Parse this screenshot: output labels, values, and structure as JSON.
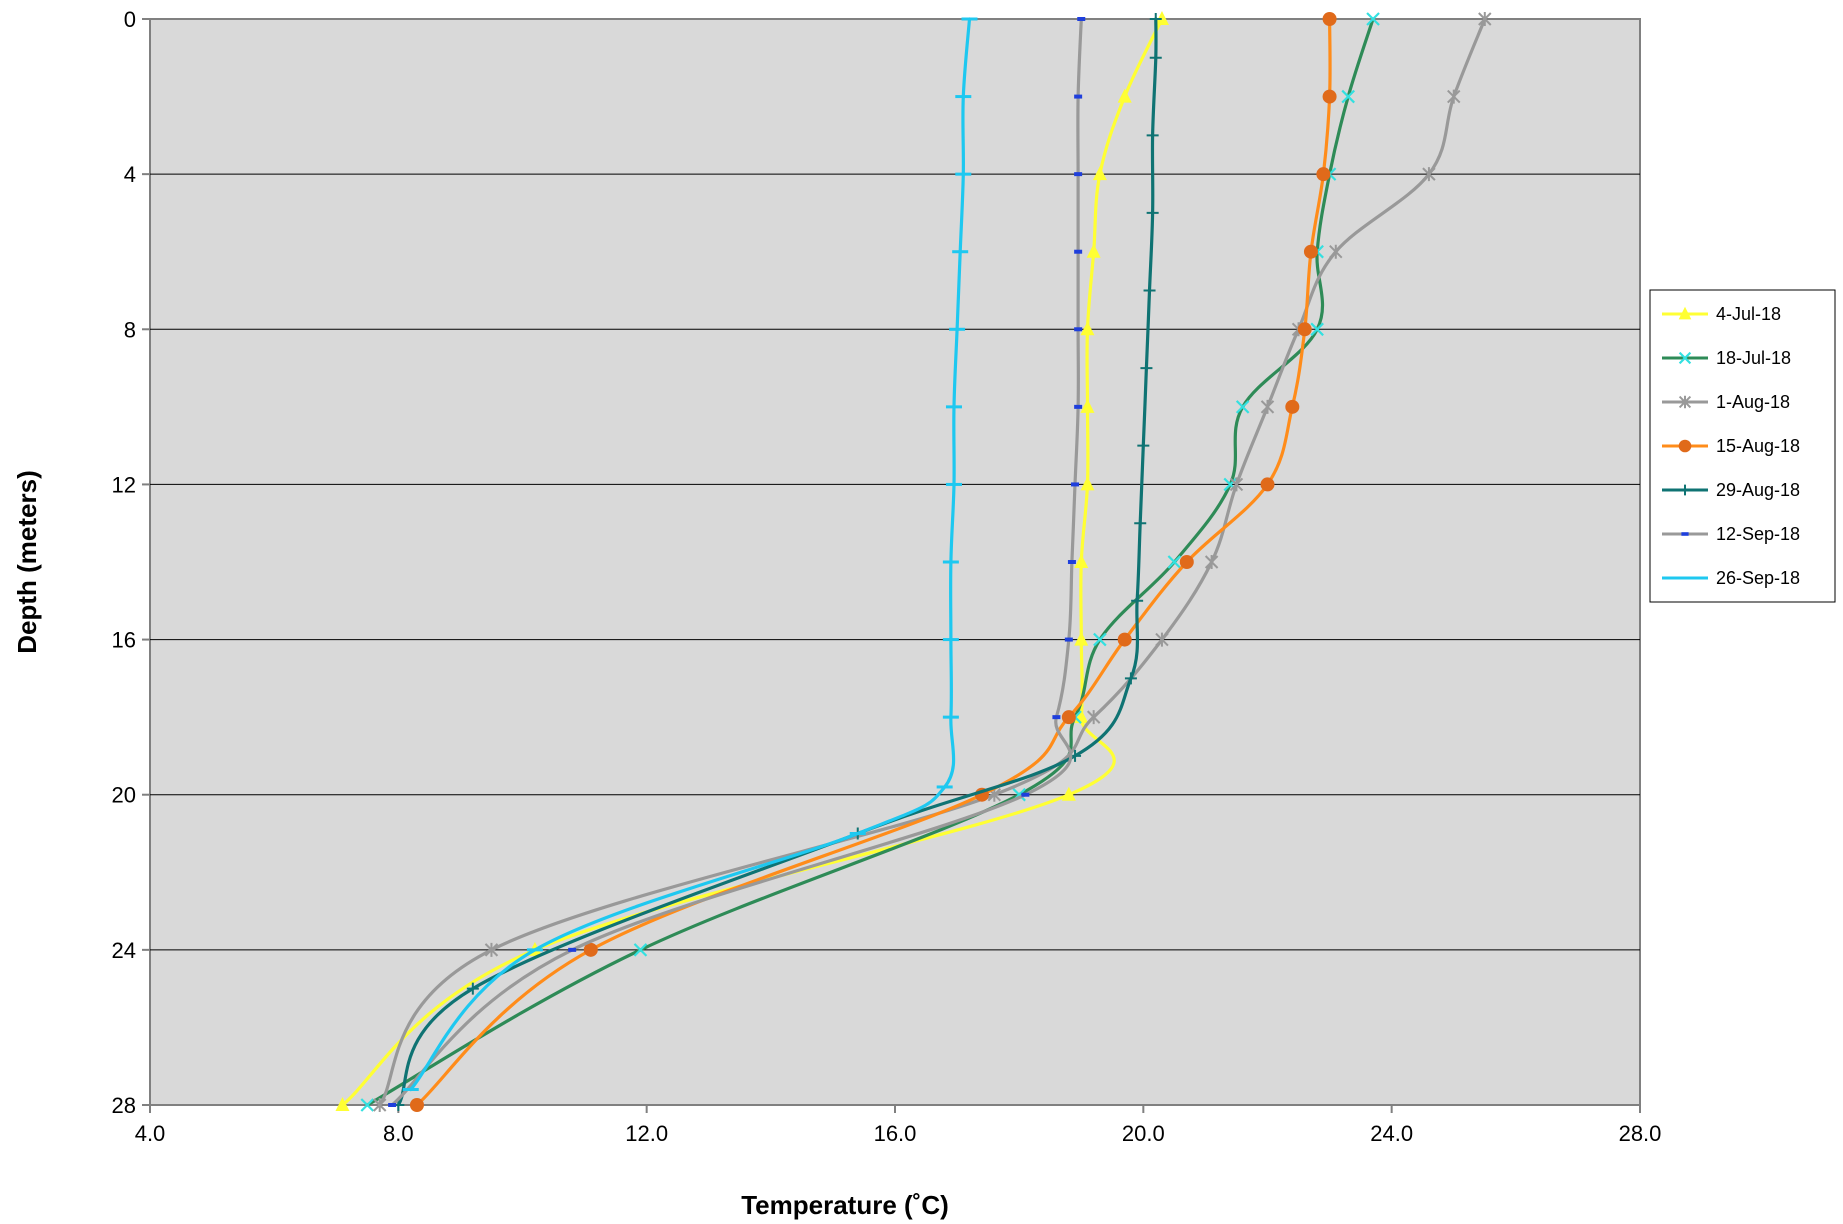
{
  "chart_data": {
    "type": "line",
    "title": "",
    "xlabel": "Temperature (˚C)",
    "ylabel": "Depth (meters)",
    "xlim": [
      4,
      28
    ],
    "ylim": [
      0,
      28
    ],
    "y_inverted": true,
    "x_ticks": [
      "4.0",
      "8.0",
      "12.0",
      "16.0",
      "20.0",
      "24.0",
      "28.0"
    ],
    "y_ticks": [
      "0",
      "4",
      "8",
      "12",
      "16",
      "20",
      "24",
      "28"
    ],
    "grid": "horizontal",
    "plot_background": "#d9d9d9",
    "legend_position": "right",
    "series": [
      {
        "name": "4-Jul-18",
        "color": "#ffff33",
        "marker": "triangle",
        "points": [
          [
            20.3,
            0
          ],
          [
            19.7,
            2
          ],
          [
            19.3,
            4
          ],
          [
            19.2,
            6
          ],
          [
            19.1,
            8
          ],
          [
            19.1,
            10
          ],
          [
            19.1,
            12
          ],
          [
            19.0,
            14
          ],
          [
            19.0,
            16
          ],
          [
            19.0,
            18
          ],
          [
            18.8,
            20
          ],
          [
            10.2,
            24
          ],
          [
            7.1,
            28
          ]
        ]
      },
      {
        "name": "18-Jul-18",
        "color": "#2e8b57",
        "marker_color": "#33e0e0",
        "marker": "x",
        "points": [
          [
            23.7,
            0
          ],
          [
            23.3,
            2
          ],
          [
            23.0,
            4
          ],
          [
            22.8,
            6
          ],
          [
            22.8,
            8
          ],
          [
            21.6,
            10
          ],
          [
            21.4,
            12
          ],
          [
            20.5,
            14
          ],
          [
            19.3,
            16
          ],
          [
            18.9,
            18
          ],
          [
            18.0,
            20
          ],
          [
            11.9,
            24
          ],
          [
            7.5,
            28
          ]
        ]
      },
      {
        "name": "1-Aug-18",
        "color": "#999999",
        "marker": "star",
        "points": [
          [
            25.5,
            0
          ],
          [
            25.0,
            2
          ],
          [
            24.6,
            4
          ],
          [
            23.1,
            6
          ],
          [
            22.5,
            8
          ],
          [
            22.0,
            10
          ],
          [
            21.5,
            12
          ],
          [
            21.1,
            14
          ],
          [
            20.3,
            16
          ],
          [
            19.2,
            18
          ],
          [
            17.6,
            20
          ],
          [
            9.5,
            24
          ],
          [
            7.7,
            28
          ]
        ]
      },
      {
        "name": "15-Aug-18",
        "color": "#ff8c1a",
        "marker_color": "#e06a1a",
        "marker": "circle",
        "points": [
          [
            23.0,
            0
          ],
          [
            23.0,
            2
          ],
          [
            22.9,
            4
          ],
          [
            22.7,
            6
          ],
          [
            22.6,
            8
          ],
          [
            22.4,
            10
          ],
          [
            22.0,
            12
          ],
          [
            20.7,
            14
          ],
          [
            19.7,
            16
          ],
          [
            18.8,
            18
          ],
          [
            17.4,
            20
          ],
          [
            11.1,
            24
          ],
          [
            8.3,
            28
          ]
        ]
      },
      {
        "name": "29-Aug-18",
        "color": "#0f7373",
        "marker": "plus",
        "points": [
          [
            20.2,
            0
          ],
          [
            20.2,
            1
          ],
          [
            20.15,
            3
          ],
          [
            20.15,
            5
          ],
          [
            20.1,
            7
          ],
          [
            20.05,
            9
          ],
          [
            20.0,
            11
          ],
          [
            19.95,
            13
          ],
          [
            19.9,
            15
          ],
          [
            19.8,
            17
          ],
          [
            18.9,
            19
          ],
          [
            15.4,
            21
          ],
          [
            9.2,
            25
          ],
          [
            8.0,
            28
          ]
        ]
      },
      {
        "name": "12-Sep-18",
        "color": "#999999",
        "marker_color": "#1f3fdc",
        "marker": "dash",
        "points": [
          [
            19.0,
            0
          ],
          [
            18.95,
            2
          ],
          [
            18.95,
            4
          ],
          [
            18.95,
            6
          ],
          [
            18.95,
            8
          ],
          [
            18.95,
            10
          ],
          [
            18.9,
            12
          ],
          [
            18.85,
            14
          ],
          [
            18.8,
            16
          ],
          [
            18.6,
            18
          ],
          [
            18.1,
            20
          ],
          [
            10.8,
            24
          ],
          [
            7.9,
            28
          ]
        ]
      },
      {
        "name": "26-Sep-18",
        "color": "#1ec8f0",
        "marker": "bar",
        "points": [
          [
            17.2,
            0
          ],
          [
            17.1,
            2
          ],
          [
            17.1,
            4
          ],
          [
            17.05,
            6
          ],
          [
            17.0,
            8
          ],
          [
            16.95,
            10
          ],
          [
            16.95,
            12
          ],
          [
            16.9,
            14
          ],
          [
            16.9,
            16
          ],
          [
            16.9,
            18
          ],
          [
            16.8,
            19.8
          ],
          [
            15.4,
            21
          ],
          [
            10.2,
            24
          ],
          [
            8.2,
            27.6
          ]
        ]
      }
    ]
  }
}
